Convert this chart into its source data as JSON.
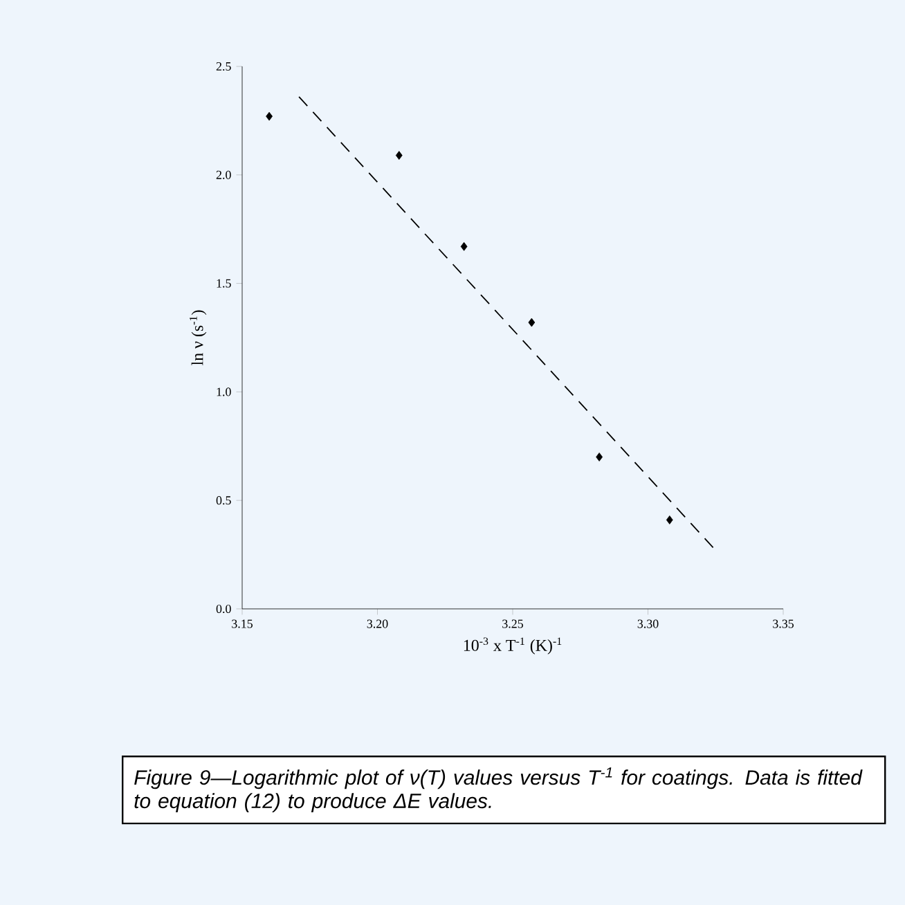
{
  "chart_data": {
    "type": "scatter",
    "xlabel": "10$^{-3}$ x T$^{-1}$ (K)$^{-1}$",
    "ylabel": "ln ν (s$^{-1}$)",
    "annotations": [
      "Figure 9—Logarithmic plot of ν(T) values versus T$^{-1}$ for coatings. Data is fitted to equation (12) to produce ΔE values."
    ],
    "xlim": [
      3.15,
      3.35
    ],
    "ylim": [
      0,
      2.5
    ],
    "xticks": [
      {
        "value": 3.15,
        "label": "3.15"
      },
      {
        "value": 3.2,
        "label": "3.20"
      },
      {
        "value": 3.25,
        "label": "3.25"
      },
      {
        "value": 3.3,
        "label": "3.30"
      },
      {
        "value": 3.35,
        "label": "3.35"
      }
    ],
    "yticks": [
      {
        "value": 0,
        "label": "0.0"
      },
      {
        "value": 0.5,
        "label": "0.5"
      },
      {
        "value": 1,
        "label": "1.0"
      },
      {
        "value": 1.5,
        "label": "1.5"
      },
      {
        "value": 2,
        "label": "2.0"
      },
      {
        "value": 2.5,
        "label": "2.5"
      }
    ],
    "series": [
      {
        "marker": "diamond",
        "color": "#000000",
        "x": [
          3.16,
          3.208,
          3.232,
          3.257,
          3.282,
          3.308
        ],
        "values": [
          2.27,
          2.09,
          1.67,
          1.32,
          0.7,
          0.41
        ]
      },
      {
        "type": "line",
        "marker": "none",
        "line_style": "dashed",
        "color": "#000000",
        "x": [
          3.171,
          3.325
        ],
        "values": [
          2.36,
          0.27
        ]
      }
    ]
  }
}
